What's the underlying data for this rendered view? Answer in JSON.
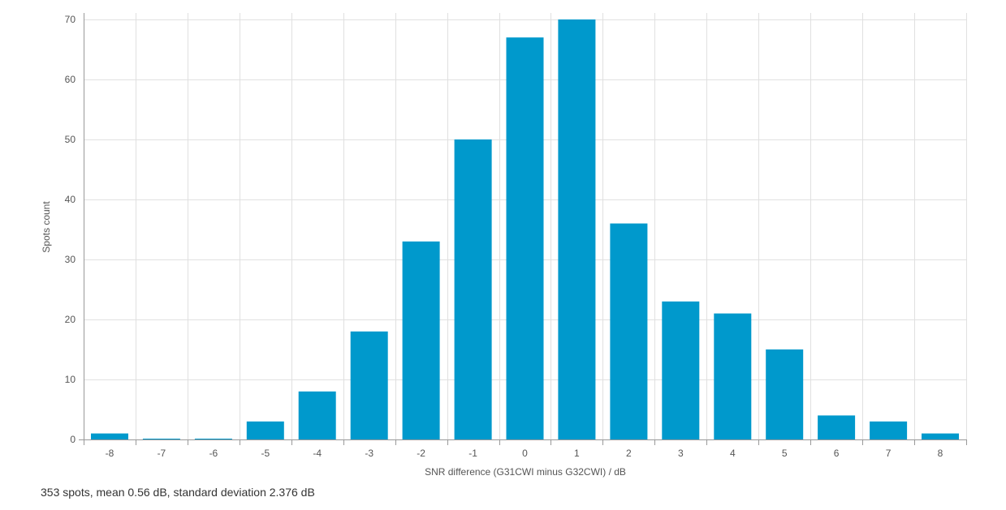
{
  "colors": {
    "bar": "#0099cc",
    "grid": "#e0e0e0",
    "axis": "#999999"
  },
  "summary": "353 spots, mean 0.56 dB, standard deviation 2.376 dB",
  "chart_data": {
    "type": "bar",
    "categories": [
      "-8",
      "-7",
      "-6",
      "-5",
      "-4",
      "-3",
      "-2",
      "-1",
      "0",
      "1",
      "2",
      "3",
      "4",
      "5",
      "6",
      "7",
      "8"
    ],
    "values": [
      1,
      0,
      0,
      3,
      8,
      18,
      33,
      50,
      67,
      70,
      36,
      23,
      21,
      15,
      4,
      3,
      1
    ],
    "xlabel": "SNR difference (G31CWI minus G32CWI) / dB",
    "ylabel": "Spots count",
    "ylim": [
      0,
      70
    ],
    "yticks": [
      0,
      10,
      20,
      30,
      40,
      50,
      60,
      70
    ],
    "grid": true
  }
}
